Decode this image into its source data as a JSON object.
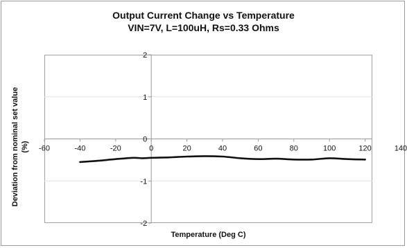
{
  "chart_data": {
    "type": "line",
    "title": "Output Current Change vs Temperature",
    "subtitle": "VIN=7V, L=100uH, Rs=0.33 Ohms",
    "xlabel": "Temperature (Deg C)",
    "ylabel_line1": "Deviation from nominal set value",
    "ylabel_line2": "(%)",
    "xlim": [
      -60,
      140
    ],
    "ylim": [
      -2,
      2
    ],
    "x_ticks": [
      "-60",
      "-40",
      "-20",
      "0",
      "20",
      "40",
      "60",
      "80",
      "100",
      "120",
      "140"
    ],
    "y_ticks": [
      "2",
      "1",
      "0",
      "-1",
      "-2"
    ],
    "grid": true,
    "legend": "none",
    "line_color": "#111111",
    "series": [
      {
        "x": [
          -40,
          -30,
          -20,
          -10,
          -5,
          0,
          10,
          20,
          30,
          40,
          50,
          60,
          70,
          80,
          90,
          100,
          110,
          120
        ],
        "y": [
          -0.55,
          -0.52,
          -0.48,
          -0.45,
          -0.46,
          -0.45,
          -0.44,
          -0.42,
          -0.41,
          -0.42,
          -0.46,
          -0.48,
          -0.47,
          -0.49,
          -0.49,
          -0.46,
          -0.48,
          -0.49
        ]
      }
    ]
  }
}
